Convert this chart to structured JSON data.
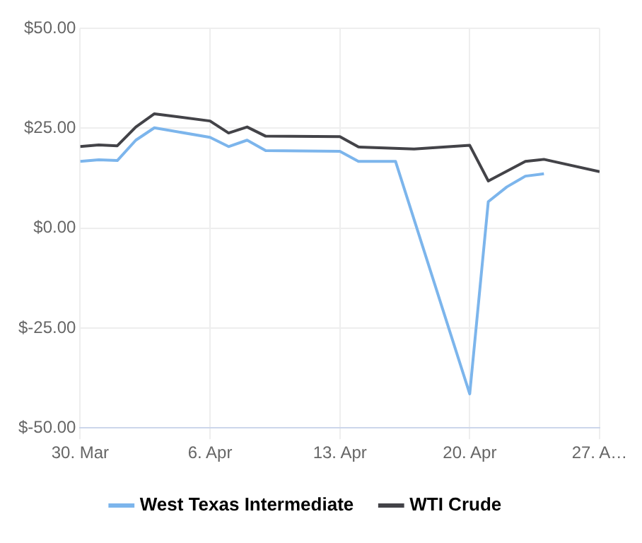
{
  "chart_data": {
    "type": "line",
    "x": [
      "--03-30",
      "--03-31",
      "--04-01",
      "--04-02",
      "--04-03",
      "--04-06",
      "--04-07",
      "--04-08",
      "--04-09",
      "--04-13",
      "--04-14",
      "--04-15",
      "--04-16",
      "--04-20",
      "--04-21",
      "--04-22",
      "--04-23",
      "--04-24"
    ],
    "series": [
      {
        "name": "West Texas Intermediate",
        "color": "#7cb5ec",
        "values": [
          16.7,
          17.1,
          16.9,
          22,
          25.1,
          22.7,
          20.4,
          22,
          19.4,
          19.2,
          16.7,
          16.7,
          16.7,
          -41.5,
          6.6,
          10.3,
          13,
          13.6
        ]
      },
      {
        "name": "WTI Crude",
        "color": "#434348",
        "x": [
          "--03-30",
          "--03-31",
          "--04-01",
          "--04-02",
          "--04-03",
          "--04-06",
          "--04-07",
          "--04-08",
          "--04-09",
          "--04-13",
          "--04-14",
          "--04-17",
          "--04-20",
          "--04-21",
          "--04-23",
          "--04-24",
          "--04-27"
        ],
        "values": [
          20.4,
          20.8,
          20.6,
          25.3,
          28.6,
          26.8,
          23.8,
          25.3,
          23,
          22.9,
          20.3,
          19.8,
          20.7,
          11.8,
          16.7,
          17.2,
          14.1
        ]
      }
    ],
    "xlim": [
      "--03-30",
      "--04-27"
    ],
    "xticks": [
      {
        "value": "--03-30",
        "label": "30. Mar"
      },
      {
        "value": "--04-06",
        "label": "6. Apr"
      },
      {
        "value": "--04-13",
        "label": "13. Apr"
      },
      {
        "value": "--04-20",
        "label": "20. Apr"
      },
      {
        "value": "--04-27",
        "label": "27. A…"
      }
    ],
    "ylim": [
      -50,
      50
    ],
    "yticks": [
      {
        "value": -50,
        "label": "$-50.00"
      },
      {
        "value": -25,
        "label": "$-25.00"
      },
      {
        "value": 0,
        "label": "$0.00"
      },
      {
        "value": 25,
        "label": "$25.00"
      },
      {
        "value": 50,
        "label": "$50.00"
      }
    ],
    "grid": true,
    "legend": "bottom",
    "marker": "none",
    "line_style": "solid"
  }
}
